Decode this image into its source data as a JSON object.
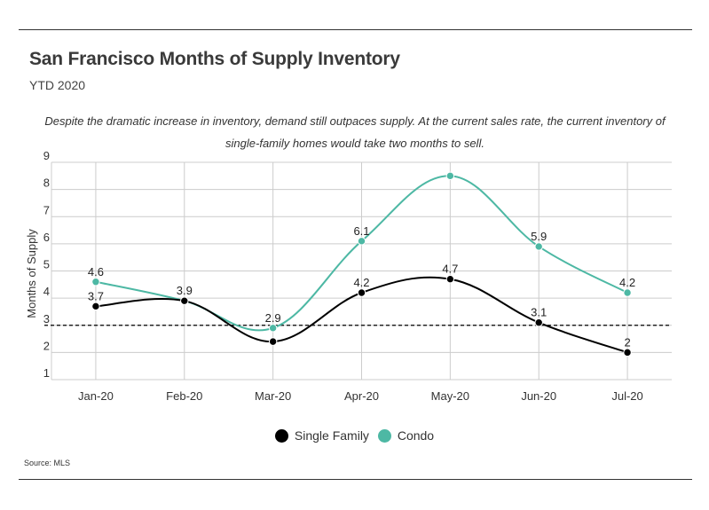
{
  "header": {
    "title": "San Francisco Months of Supply Inventory",
    "subtitle": "YTD 2020",
    "note_line1": "Despite the dramatic increase in inventory, demand still outpaces supply. At the current sales rate, the current inventory of",
    "note_line2": "single-family homes would take two months to sell."
  },
  "footer": {
    "source": "Source:  MLS"
  },
  "colors": {
    "single_family": "#000000",
    "condo": "#4db8a4",
    "grid": "#cccccc",
    "reference": "#000000"
  },
  "chart_data": {
    "type": "line",
    "categories": [
      "Jan-20",
      "Feb-20",
      "Mar-20",
      "Apr-20",
      "May-20",
      "Jun-20",
      "Jul-20"
    ],
    "series": [
      {
        "name": "Single Family",
        "values": [
          3.7,
          3.9,
          2.4,
          4.2,
          4.7,
          3.1,
          2
        ]
      },
      {
        "name": "Condo",
        "values": [
          4.6,
          3.9,
          2.9,
          6.1,
          8.5,
          5.9,
          4.2
        ]
      }
    ],
    "data_labels": {
      "Single Family": [
        "3.7",
        "3.9",
        "",
        "4.2",
        "4.7",
        "3.1",
        "2"
      ],
      "Condo": [
        "4.6",
        "",
        "2.9",
        "6.1",
        "",
        "5.9",
        "4.2"
      ]
    },
    "reference_line": 3,
    "ylabel": "Months of Supply",
    "ylim": [
      1,
      9
    ],
    "yticks": [
      1,
      2,
      3,
      4,
      5,
      6,
      7,
      8,
      9
    ],
    "grid": true,
    "curve": "smooth",
    "legend_position": "bottom-center"
  }
}
